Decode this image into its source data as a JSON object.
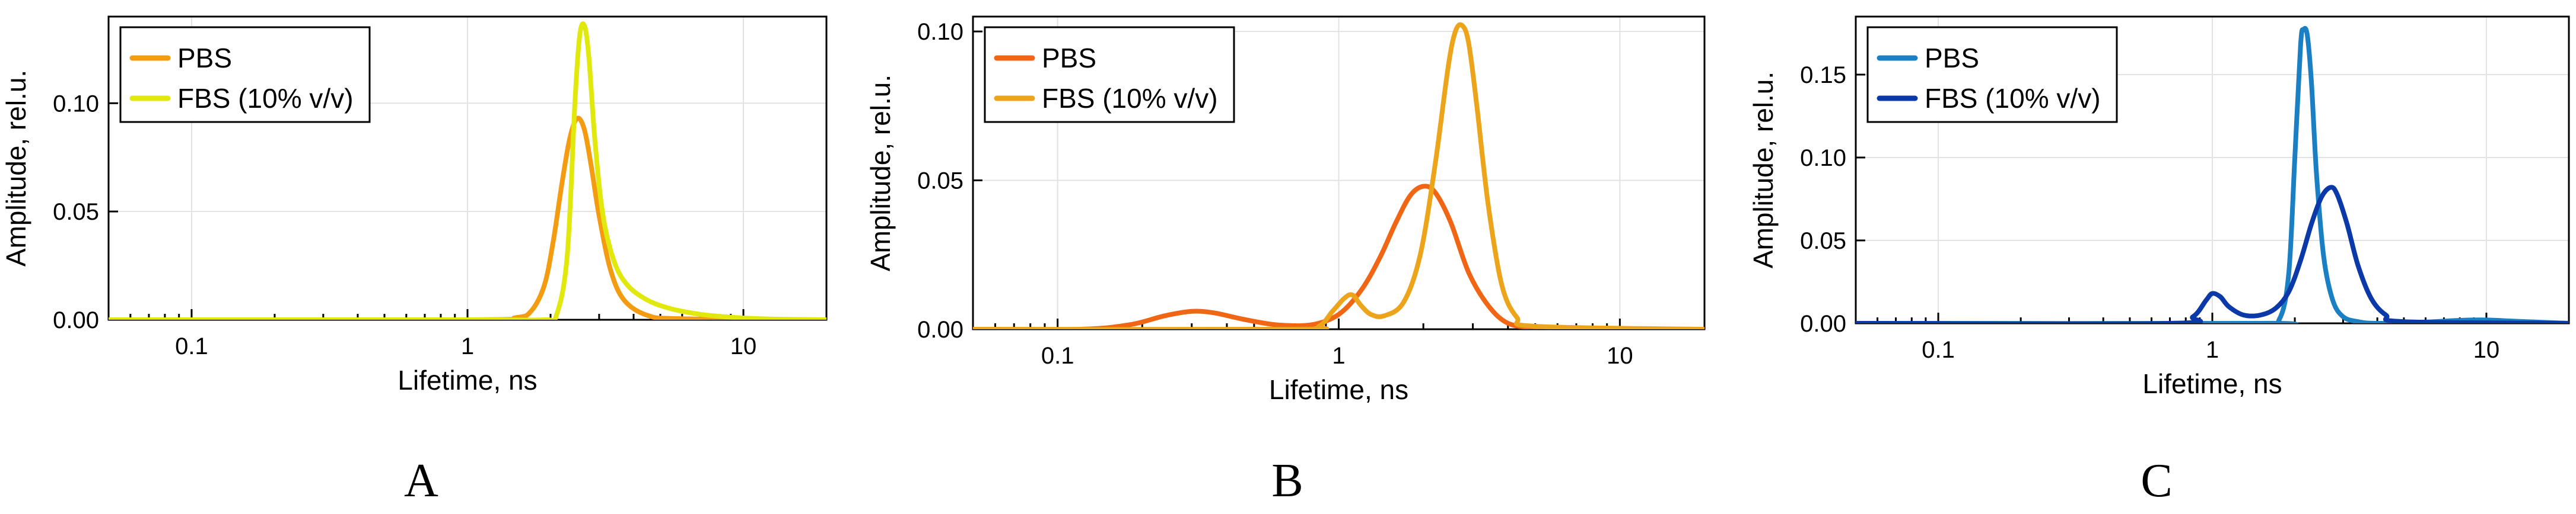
{
  "chart_data": [
    {
      "type": "line",
      "panel_label": "A",
      "xscale": "log",
      "xlim": [
        0.05,
        20
      ],
      "ylim": [
        0,
        0.14
      ],
      "xticks": [
        0.1,
        1,
        10
      ],
      "xtick_labels": [
        "0.1",
        "1",
        "10"
      ],
      "yticks": [
        0.0,
        0.05,
        0.1
      ],
      "ytick_labels": [
        "0.00",
        "0.05",
        "0.10"
      ],
      "xlabel": "Lifetime, ns",
      "ylabel": "Amplitude, rel.u.",
      "legend_position": "top-left",
      "series": [
        {
          "name": "PBS",
          "color": "#f39c12",
          "x": [
            0.05,
            1.0,
            1.5,
            1.7,
            1.9,
            2.05,
            2.2,
            2.35,
            2.5,
            2.65,
            2.8,
            3.0,
            3.3,
            3.7,
            4.5,
            6,
            20
          ],
          "y": [
            0,
            0,
            0.001,
            0.004,
            0.016,
            0.037,
            0.063,
            0.084,
            0.093,
            0.088,
            0.072,
            0.048,
            0.023,
            0.009,
            0.002,
            0.0005,
            0
          ]
        },
        {
          "name": "FBS (10% v/v)",
          "color": "#e1e80c",
          "x": [
            0.05,
            1.0,
            1.9,
            2.1,
            2.3,
            2.45,
            2.55,
            2.65,
            2.75,
            2.9,
            3.1,
            3.4,
            3.8,
            4.5,
            5.5,
            7,
            9,
            12,
            20
          ],
          "y": [
            0,
            0,
            0,
            0.002,
            0.03,
            0.1,
            0.131,
            0.136,
            0.122,
            0.082,
            0.048,
            0.027,
            0.016,
            0.009,
            0.005,
            0.0025,
            0.0012,
            0.0004,
            0
          ]
        }
      ]
    },
    {
      "type": "line",
      "panel_label": "B",
      "xscale": "log",
      "xlim": [
        0.05,
        20
      ],
      "ylim": [
        0,
        0.105
      ],
      "xticks": [
        0.1,
        1,
        10
      ],
      "xtick_labels": [
        "0.1",
        "1",
        "10"
      ],
      "yticks": [
        0.0,
        0.05,
        0.1
      ],
      "ytick_labels": [
        "0.00",
        "0.05",
        "0.10"
      ],
      "xlabel": "Lifetime, ns",
      "ylabel": "Amplitude, rel.u.",
      "legend_position": "top-left",
      "series": [
        {
          "name": "PBS",
          "color": "#f06614",
          "x": [
            0.05,
            0.12,
            0.18,
            0.24,
            0.3,
            0.36,
            0.45,
            0.6,
            0.8,
            1.0,
            1.2,
            1.4,
            1.6,
            1.8,
            2.0,
            2.2,
            2.5,
            2.9,
            3.4,
            4.0,
            5,
            7,
            20
          ],
          "y": [
            0,
            0,
            0.0015,
            0.0045,
            0.006,
            0.0055,
            0.0035,
            0.0015,
            0.0015,
            0.005,
            0.013,
            0.024,
            0.036,
            0.045,
            0.048,
            0.046,
            0.036,
            0.019,
            0.008,
            0.002,
            0.0005,
            0,
            0
          ]
        },
        {
          "name": "FBS (10% v/v)",
          "color": "#eca51a",
          "x": [
            0.05,
            0.7,
            0.85,
            0.95,
            1.05,
            1.12,
            1.2,
            1.3,
            1.45,
            1.7,
            1.95,
            2.2,
            2.45,
            2.6,
            2.75,
            2.9,
            3.1,
            3.4,
            3.8,
            4.3,
            5,
            20
          ],
          "y": [
            0,
            0,
            0.001,
            0.006,
            0.0105,
            0.0115,
            0.008,
            0.005,
            0.0045,
            0.009,
            0.025,
            0.055,
            0.088,
            0.1,
            0.102,
            0.096,
            0.075,
            0.042,
            0.015,
            0.004,
            0.001,
            0
          ]
        }
      ]
    },
    {
      "type": "line",
      "panel_label": "C",
      "xscale": "log",
      "xlim": [
        0.05,
        20
      ],
      "ylim": [
        0,
        0.185
      ],
      "xticks": [
        0.1,
        1,
        10
      ],
      "xtick_labels": [
        "0.1",
        "1",
        "10"
      ],
      "yticks": [
        0.0,
        0.05,
        0.1,
        0.15
      ],
      "ytick_labels": [
        "0.00",
        "0.05",
        "0.10",
        "0.15"
      ],
      "xlabel": "Lifetime, ns",
      "ylabel": "Amplitude, rel.u.",
      "legend_position": "top-left",
      "series": [
        {
          "name": "PBS",
          "color": "#1a7fc3",
          "x": [
            0.05,
            1.5,
            1.75,
            1.9,
            2.0,
            2.1,
            2.15,
            2.22,
            2.3,
            2.4,
            2.55,
            2.75,
            3.0,
            3.4,
            4.0,
            6,
            8,
            10,
            13,
            20
          ],
          "y": [
            0,
            0,
            0.002,
            0.03,
            0.1,
            0.168,
            0.177,
            0.174,
            0.145,
            0.09,
            0.04,
            0.014,
            0.004,
            0.001,
            0,
            0.0008,
            0.0018,
            0.002,
            0.0012,
            0
          ]
        },
        {
          "name": "FBS (10% v/v)",
          "color": "#0b3aa8",
          "x": [
            0.05,
            0.7,
            0.85,
            0.95,
            1.0,
            1.07,
            1.15,
            1.3,
            1.5,
            1.7,
            1.9,
            2.1,
            2.3,
            2.5,
            2.7,
            2.85,
            3.1,
            3.4,
            3.8,
            4.3,
            5,
            20
          ],
          "y": [
            0,
            0,
            0.004,
            0.014,
            0.018,
            0.016,
            0.01,
            0.005,
            0.005,
            0.009,
            0.019,
            0.038,
            0.06,
            0.076,
            0.082,
            0.078,
            0.06,
            0.035,
            0.015,
            0.005,
            0.001,
            0
          ]
        }
      ]
    }
  ]
}
